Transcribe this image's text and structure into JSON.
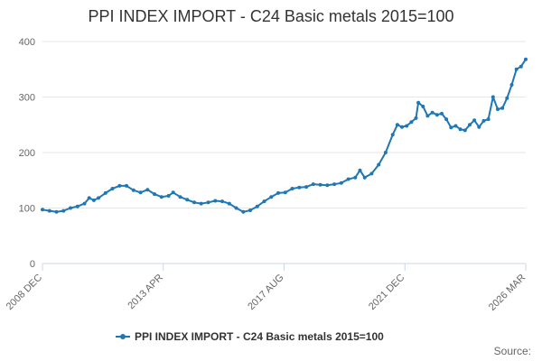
{
  "chart_data": {
    "type": "line",
    "title": "PPI INDEX IMPORT - C24 Basic metals 2015=100",
    "ylim": [
      0,
      400
    ],
    "y_ticks": [
      "0",
      "100",
      "200",
      "300",
      "400"
    ],
    "x_tick_labels": [
      "2008 DEC",
      "2013 APR",
      "2017 AUG",
      "2021 DEC",
      "2026 MAR"
    ],
    "grid": true,
    "legend_position": "bottom-center",
    "source_label": "Source:",
    "series": [
      {
        "name": "PPI INDEX IMPORT - C24 Basic metals 2015=100",
        "color": "#1f77b4",
        "points": [
          [
            "2008-12",
            97
          ],
          [
            "2009-03",
            95
          ],
          [
            "2009-06",
            93
          ],
          [
            "2009-09",
            95
          ],
          [
            "2009-12",
            100
          ],
          [
            "2010-03",
            103
          ],
          [
            "2010-06",
            108
          ],
          [
            "2010-08",
            118
          ],
          [
            "2010-10",
            114
          ],
          [
            "2010-12",
            118
          ],
          [
            "2011-03",
            127
          ],
          [
            "2011-06",
            135
          ],
          [
            "2011-09",
            140
          ],
          [
            "2011-12",
            140
          ],
          [
            "2012-03",
            132
          ],
          [
            "2012-06",
            128
          ],
          [
            "2012-09",
            133
          ],
          [
            "2012-12",
            125
          ],
          [
            "2013-03",
            120
          ],
          [
            "2013-06",
            122
          ],
          [
            "2013-08",
            128
          ],
          [
            "2013-11",
            120
          ],
          [
            "2014-02",
            115
          ],
          [
            "2014-05",
            110
          ],
          [
            "2014-08",
            108
          ],
          [
            "2014-11",
            110
          ],
          [
            "2015-02",
            113
          ],
          [
            "2015-05",
            112
          ],
          [
            "2015-08",
            108
          ],
          [
            "2015-11",
            100
          ],
          [
            "2016-02",
            93
          ],
          [
            "2016-05",
            96
          ],
          [
            "2016-08",
            103
          ],
          [
            "2016-11",
            112
          ],
          [
            "2017-02",
            120
          ],
          [
            "2017-05",
            127
          ],
          [
            "2017-08",
            128
          ],
          [
            "2017-11",
            135
          ],
          [
            "2018-02",
            137
          ],
          [
            "2018-05",
            138
          ],
          [
            "2018-08",
            143
          ],
          [
            "2018-11",
            142
          ],
          [
            "2019-02",
            141
          ],
          [
            "2019-05",
            143
          ],
          [
            "2019-08",
            145
          ],
          [
            "2019-11",
            152
          ],
          [
            "2020-02",
            155
          ],
          [
            "2020-04",
            168
          ],
          [
            "2020-06",
            155
          ],
          [
            "2020-09",
            162
          ],
          [
            "2020-12",
            178
          ],
          [
            "2021-03",
            200
          ],
          [
            "2021-06",
            232
          ],
          [
            "2021-08",
            250
          ],
          [
            "2021-10",
            246
          ],
          [
            "2021-12",
            248
          ],
          [
            "2022-02",
            255
          ],
          [
            "2022-04",
            262
          ],
          [
            "2022-05",
            290
          ],
          [
            "2022-07",
            283
          ],
          [
            "2022-09",
            266
          ],
          [
            "2022-11",
            272
          ],
          [
            "2023-01",
            268
          ],
          [
            "2023-03",
            270
          ],
          [
            "2023-05",
            260
          ],
          [
            "2023-07",
            245
          ],
          [
            "2023-09",
            248
          ],
          [
            "2023-11",
            242
          ],
          [
            "2024-01",
            240
          ],
          [
            "2024-03",
            250
          ],
          [
            "2024-05",
            258
          ],
          [
            "2024-07",
            246
          ],
          [
            "2024-09",
            257
          ],
          [
            "2024-11",
            260
          ],
          [
            "2025-01",
            300
          ],
          [
            "2025-03",
            278
          ],
          [
            "2025-05",
            280
          ],
          [
            "2025-07",
            298
          ],
          [
            "2025-09",
            322
          ],
          [
            "2025-11",
            350
          ],
          [
            "2026-01",
            355
          ],
          [
            "2026-03",
            368
          ]
        ]
      }
    ]
  }
}
